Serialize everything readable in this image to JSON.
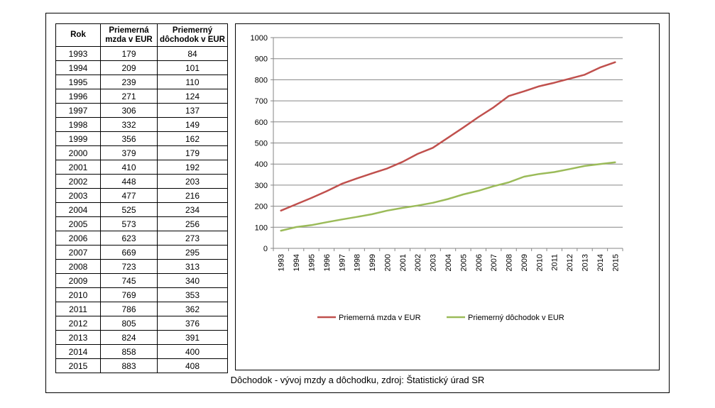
{
  "table": {
    "headers": [
      "Rok",
      "Priemerná mzda v EUR",
      "Priemerný dôchodok v EUR"
    ],
    "rows": [
      [
        "1993",
        "179",
        "84"
      ],
      [
        "1994",
        "209",
        "101"
      ],
      [
        "1995",
        "239",
        "110"
      ],
      [
        "1996",
        "271",
        "124"
      ],
      [
        "1997",
        "306",
        "137"
      ],
      [
        "1998",
        "332",
        "149"
      ],
      [
        "1999",
        "356",
        "162"
      ],
      [
        "2000",
        "379",
        "179"
      ],
      [
        "2001",
        "410",
        "192"
      ],
      [
        "2002",
        "448",
        "203"
      ],
      [
        "2003",
        "477",
        "216"
      ],
      [
        "2004",
        "525",
        "234"
      ],
      [
        "2005",
        "573",
        "256"
      ],
      [
        "2006",
        "623",
        "273"
      ],
      [
        "2007",
        "669",
        "295"
      ],
      [
        "2008",
        "723",
        "313"
      ],
      [
        "2009",
        "745",
        "340"
      ],
      [
        "2010",
        "769",
        "353"
      ],
      [
        "2011",
        "786",
        "362"
      ],
      [
        "2012",
        "805",
        "376"
      ],
      [
        "2013",
        "824",
        "391"
      ],
      [
        "2014",
        "858",
        "400"
      ],
      [
        "2015",
        "883",
        "408"
      ]
    ]
  },
  "caption": "Dôchodok - vývoj mzdy a dôchodku, zdroj: Štatistický úrad SR",
  "chart_data": {
    "type": "line",
    "x": [
      "1993",
      "1994",
      "1995",
      "1996",
      "1997",
      "1998",
      "1999",
      "2000",
      "2001",
      "2002",
      "2003",
      "2004",
      "2005",
      "2006",
      "2007",
      "2008",
      "2009",
      "2010",
      "2011",
      "2012",
      "2013",
      "2014",
      "2015"
    ],
    "series": [
      {
        "name": "Priemerná mzda v EUR",
        "color": "#c0504d",
        "values": [
          179,
          209,
          239,
          271,
          306,
          332,
          356,
          379,
          410,
          448,
          477,
          525,
          573,
          623,
          669,
          723,
          745,
          769,
          786,
          805,
          824,
          858,
          883
        ]
      },
      {
        "name": "Priemerný dôchodok v EUR",
        "color": "#9bbb59",
        "values": [
          84,
          101,
          110,
          124,
          137,
          149,
          162,
          179,
          192,
          203,
          216,
          234,
          256,
          273,
          295,
          313,
          340,
          353,
          362,
          376,
          391,
          400,
          408
        ]
      }
    ],
    "ylim": [
      0,
      1000
    ],
    "yticks": [
      0,
      100,
      200,
      300,
      400,
      500,
      600,
      700,
      800,
      900,
      1000
    ],
    "grid": true,
    "legend_position": "bottom"
  }
}
